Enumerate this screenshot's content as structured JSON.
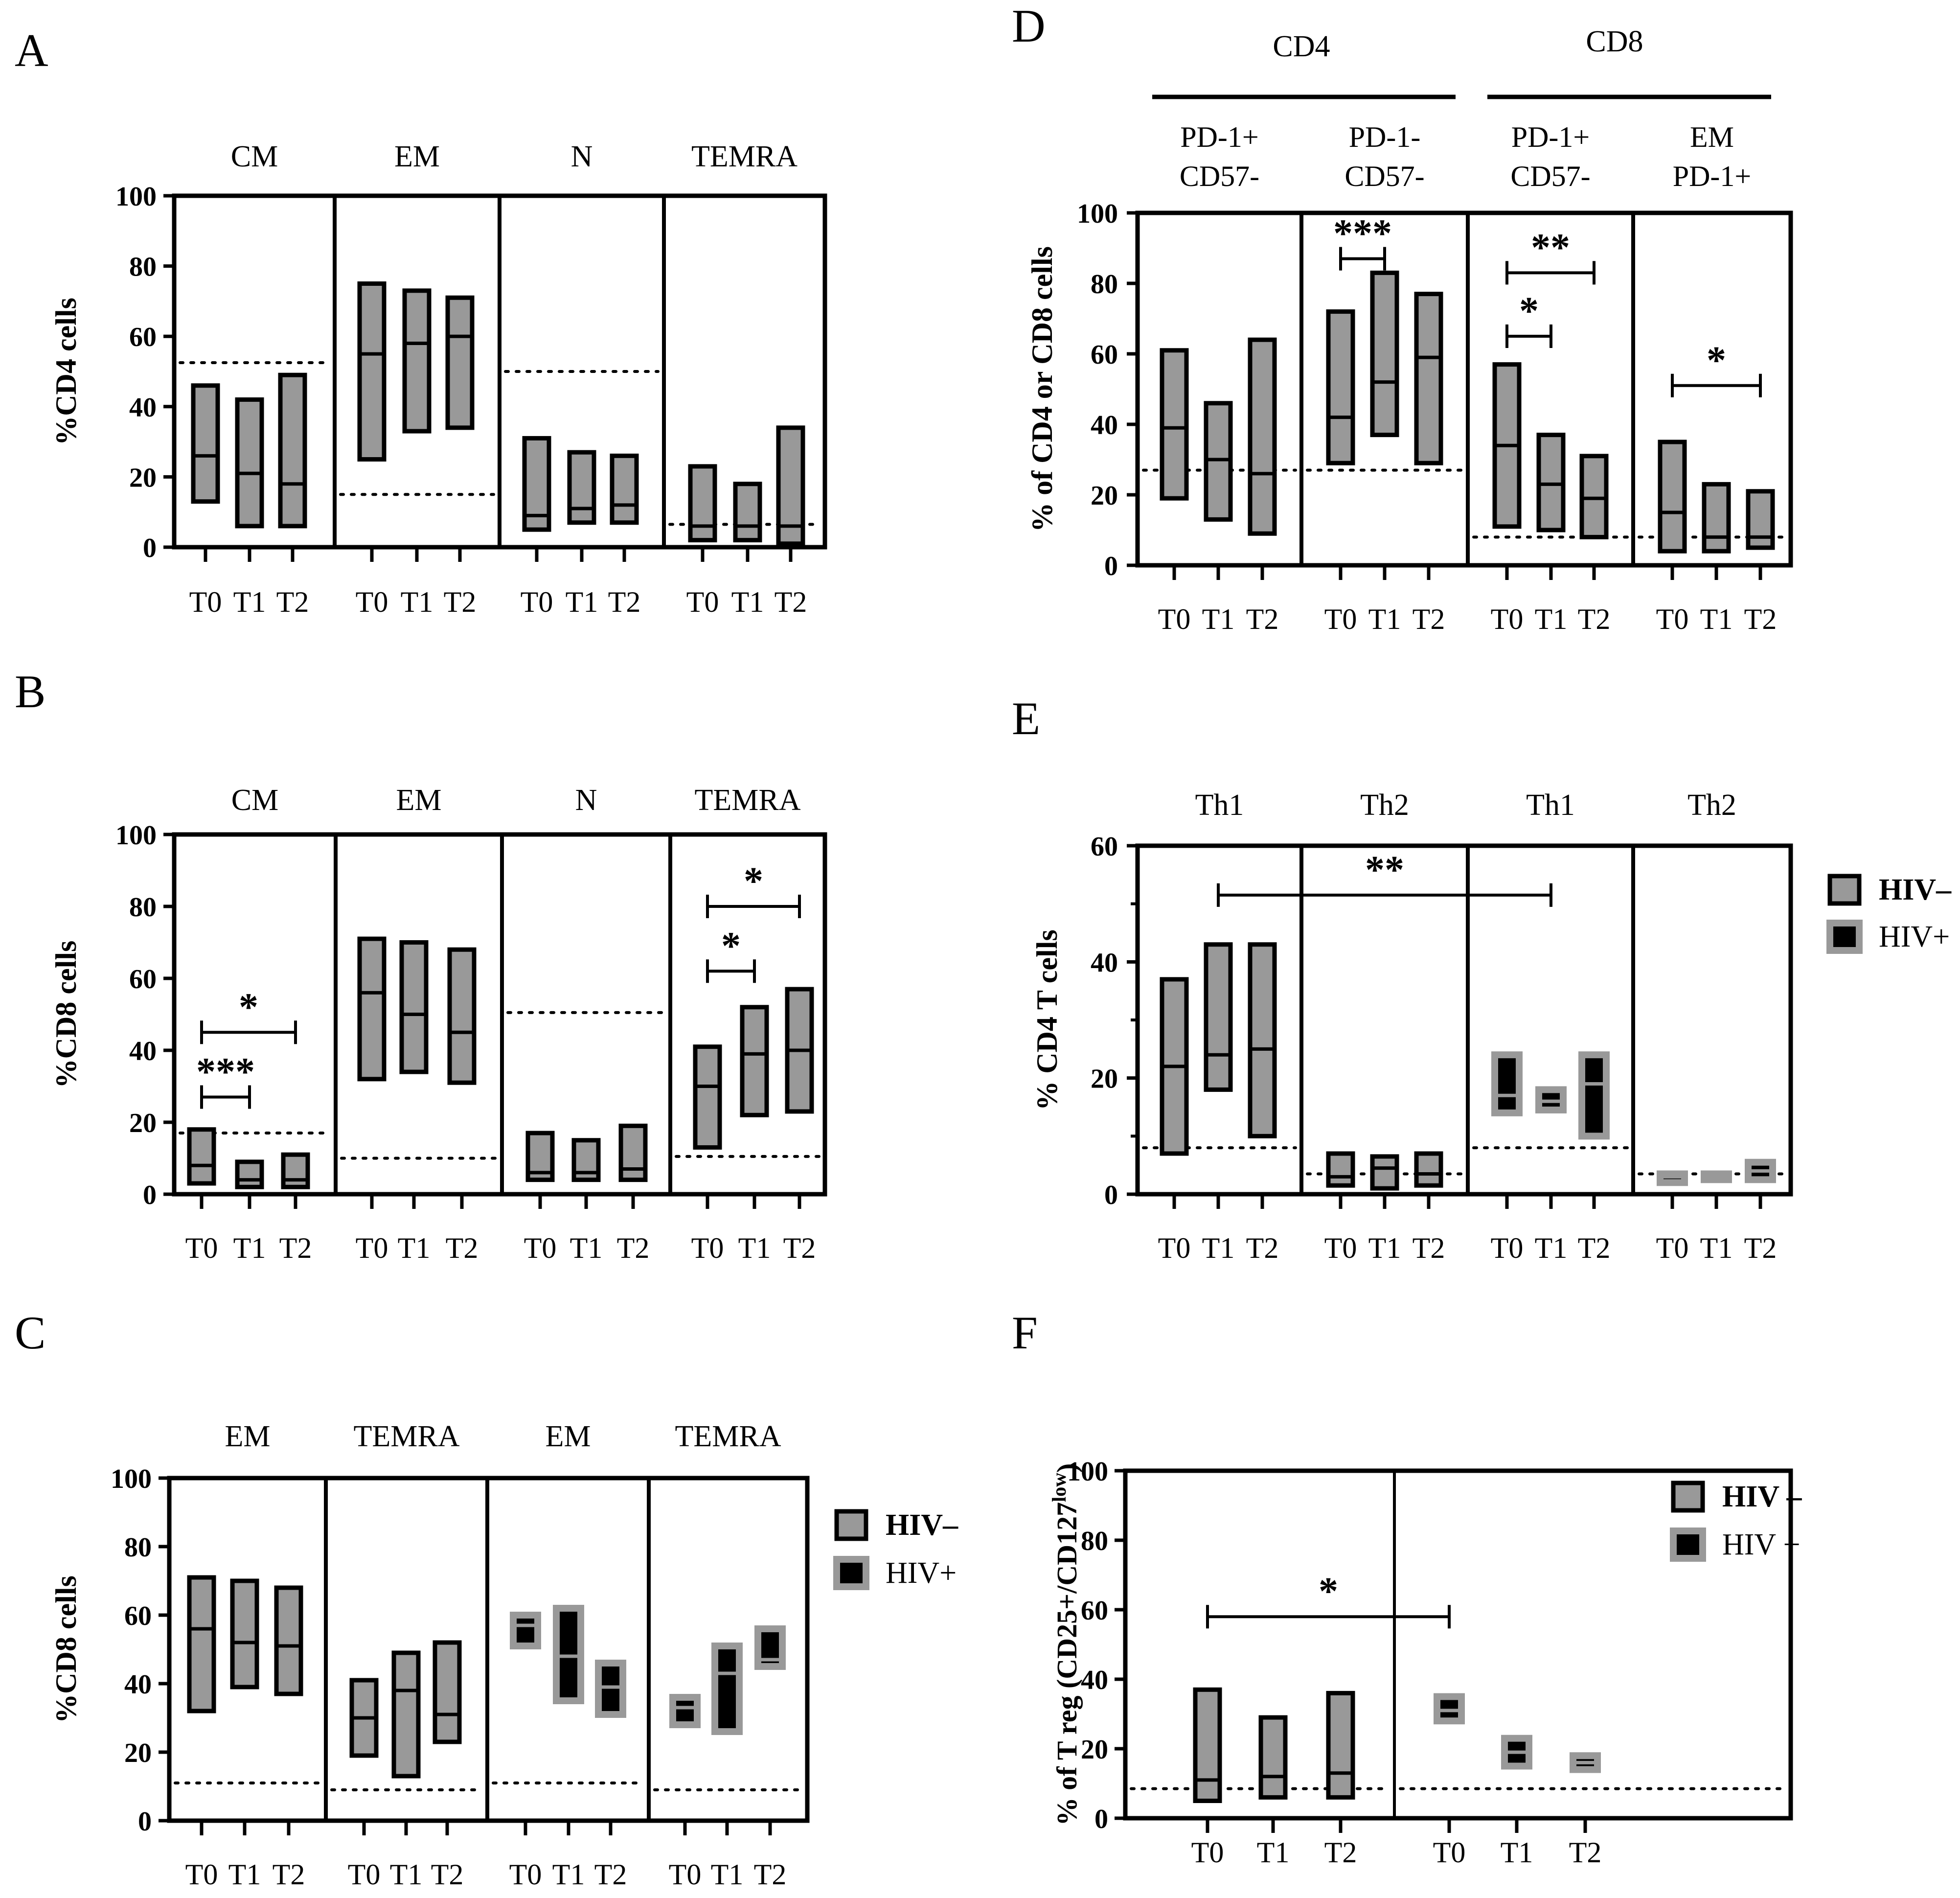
{
  "colors": {
    "hiv_neg": "#999999",
    "hiv_pos": "#000000",
    "hiv_pos_border": "#999999",
    "stroke": "#000000"
  },
  "chart_data": [
    {
      "id": "A",
      "label": "A",
      "type": "floating-bar",
      "ylabel": "%CD4 cells",
      "ylim": [
        0,
        100
      ],
      "yticks": [
        "0",
        "20",
        "40",
        "60",
        "80",
        "100"
      ],
      "timepoints": [
        "T0",
        "T1",
        "T2"
      ],
      "panels": [
        {
          "title": "CM",
          "reference": 52.5,
          "bars": [
            {
              "t": "T0",
              "min": 13,
              "max": 46,
              "median": 26,
              "group": "HIV-"
            },
            {
              "t": "T1",
              "min": 6,
              "max": 42,
              "median": 21,
              "group": "HIV-"
            },
            {
              "t": "T2",
              "min": 6,
              "max": 49,
              "median": 18,
              "group": "HIV-"
            }
          ]
        },
        {
          "title": "EM",
          "reference": 15,
          "bars": [
            {
              "t": "T0",
              "min": 25,
              "max": 75,
              "median": 55,
              "group": "HIV-"
            },
            {
              "t": "T1",
              "min": 33,
              "max": 73,
              "median": 58,
              "group": "HIV-"
            },
            {
              "t": "T2",
              "min": 34,
              "max": 71,
              "median": 60,
              "group": "HIV-"
            }
          ]
        },
        {
          "title": "N",
          "reference": 50,
          "bars": [
            {
              "t": "T0",
              "min": 5,
              "max": 31,
              "median": 9,
              "group": "HIV-"
            },
            {
              "t": "T1",
              "min": 7,
              "max": 27,
              "median": 11,
              "group": "HIV-"
            },
            {
              "t": "T2",
              "min": 7,
              "max": 26,
              "median": 12,
              "group": "HIV-"
            }
          ]
        },
        {
          "title": "TEMRA",
          "reference": 6.5,
          "bars": [
            {
              "t": "T0",
              "min": 2,
              "max": 23,
              "median": 6,
              "group": "HIV-"
            },
            {
              "t": "T1",
              "min": 2,
              "max": 18,
              "median": 6,
              "group": "HIV-"
            },
            {
              "t": "T2",
              "min": 1,
              "max": 34,
              "median": 6,
              "group": "HIV-"
            }
          ]
        }
      ],
      "sig": []
    },
    {
      "id": "B",
      "label": "B",
      "type": "floating-bar",
      "ylabel": "%CD8 cells",
      "ylim": [
        0,
        100
      ],
      "yticks": [
        "0",
        "20",
        "40",
        "60",
        "80",
        "100"
      ],
      "timepoints": [
        "T0",
        "T1",
        "T2"
      ],
      "panels": [
        {
          "title": "CM",
          "reference": 17,
          "bars": [
            {
              "t": "T0",
              "min": 3,
              "max": 18,
              "median": 8,
              "group": "HIV-"
            },
            {
              "t": "T1",
              "min": 2,
              "max": 9,
              "median": 4,
              "group": "HIV-"
            },
            {
              "t": "T2",
              "min": 2,
              "max": 11,
              "median": 4,
              "group": "HIV-"
            }
          ]
        },
        {
          "title": "EM",
          "reference": 10,
          "bars": [
            {
              "t": "T0",
              "min": 32,
              "max": 71,
              "median": 56,
              "group": "HIV-"
            },
            {
              "t": "T1",
              "min": 34,
              "max": 70,
              "median": 50,
              "group": "HIV-"
            },
            {
              "t": "T2",
              "min": 31,
              "max": 68,
              "median": 45,
              "group": "HIV-"
            }
          ]
        },
        {
          "title": "N",
          "reference": 50.5,
          "bars": [
            {
              "t": "T0",
              "min": 4,
              "max": 17,
              "median": 6,
              "group": "HIV-"
            },
            {
              "t": "T1",
              "min": 4,
              "max": 15,
              "median": 6,
              "group": "HIV-"
            },
            {
              "t": "T2",
              "min": 4,
              "max": 19,
              "median": 7,
              "group": "HIV-"
            }
          ]
        },
        {
          "title": "TEMRA",
          "reference": 10.5,
          "bars": [
            {
              "t": "T0",
              "min": 13,
              "max": 41,
              "median": 30,
              "group": "HIV-"
            },
            {
              "t": "T1",
              "min": 22,
              "max": 52,
              "median": 39,
              "group": "HIV-"
            },
            {
              "t": "T2",
              "min": 23,
              "max": 57,
              "median": 40,
              "group": "HIV-"
            }
          ]
        }
      ],
      "sig": [
        {
          "panel_from": 0,
          "bar_from": 0,
          "panel_to": 0,
          "bar_to": 2,
          "y": 45,
          "label": "*"
        },
        {
          "panel_from": 0,
          "bar_from": 0,
          "panel_to": 0,
          "bar_to": 1,
          "y": 27,
          "label": "***"
        },
        {
          "panel_from": 3,
          "bar_from": 0,
          "panel_to": 3,
          "bar_to": 2,
          "y": 80,
          "label": "*"
        },
        {
          "panel_from": 3,
          "bar_from": 0,
          "panel_to": 3,
          "bar_to": 1,
          "y": 62,
          "label": "*"
        }
      ]
    },
    {
      "id": "C",
      "label": "C",
      "type": "floating-bar",
      "ylabel": "%CD8 cells",
      "ylim": [
        0,
        100
      ],
      "yticks": [
        "0",
        "20",
        "40",
        "60",
        "80",
        "100"
      ],
      "timepoints": [
        "T0",
        "T1",
        "T2"
      ],
      "panels": [
        {
          "title": "EM",
          "reference": 11,
          "bars": [
            {
              "t": "T0",
              "min": 32,
              "max": 71,
              "median": 56,
              "group": "HIV-"
            },
            {
              "t": "T1",
              "min": 39,
              "max": 70,
              "median": 52,
              "group": "HIV-"
            },
            {
              "t": "T2",
              "min": 37,
              "max": 68,
              "median": 51,
              "group": "HIV-"
            }
          ]
        },
        {
          "title": "TEMRA",
          "reference": 9,
          "bars": [
            {
              "t": "T0",
              "min": 19,
              "max": 41,
              "median": 30,
              "group": "HIV-"
            },
            {
              "t": "T1",
              "min": 13,
              "max": 49,
              "median": 38,
              "group": "HIV-"
            },
            {
              "t": "T2",
              "min": 23,
              "max": 52,
              "median": 31,
              "group": "HIV-"
            }
          ]
        },
        {
          "title": "EM",
          "reference": 11,
          "bars": [
            {
              "t": "T0",
              "min": 51,
              "max": 60,
              "median": 57,
              "group": "HIV+"
            },
            {
              "t": "T1",
              "min": 35,
              "max": 62,
              "median": 48,
              "group": "HIV+"
            },
            {
              "t": "T2",
              "min": 31,
              "max": 46,
              "median": 39,
              "group": "HIV+"
            }
          ]
        },
        {
          "title": "TEMRA",
          "reference": 9,
          "bars": [
            {
              "t": "T0",
              "min": 28,
              "max": 36,
              "median": 33,
              "group": "HIV+"
            },
            {
              "t": "T1",
              "min": 26,
              "max": 51,
              "median": 43,
              "group": "HIV+"
            },
            {
              "t": "T2",
              "min": 45,
              "max": 56,
              "median": 47,
              "group": "HIV+"
            }
          ]
        }
      ],
      "legend": [
        {
          "label": "HIV–",
          "group": "HIV-"
        },
        {
          "label": "HIV+",
          "group": "HIV+"
        }
      ],
      "sig": []
    },
    {
      "id": "D",
      "label": "D",
      "type": "floating-bar",
      "ylabel": "% of CD4 or CD8 cells",
      "ylim": [
        0,
        100
      ],
      "yticks": [
        "0",
        "20",
        "40",
        "60",
        "80",
        "100"
      ],
      "timepoints": [
        "T0",
        "T1",
        "T2"
      ],
      "group_headers": [
        {
          "label": "CD4",
          "panels": [
            0,
            1
          ]
        },
        {
          "label": "CD8",
          "panels": [
            2,
            3
          ]
        }
      ],
      "panels": [
        {
          "title": [
            "PD-1+",
            "CD57-"
          ],
          "reference": 27,
          "bars": [
            {
              "t": "T0",
              "min": 19,
              "max": 61,
              "median": 39,
              "group": "HIV-"
            },
            {
              "t": "T1",
              "min": 13,
              "max": 46,
              "median": 30,
              "group": "HIV-"
            },
            {
              "t": "T2",
              "min": 9,
              "max": 64,
              "median": 26,
              "group": "HIV-"
            }
          ]
        },
        {
          "title": [
            "PD-1-",
            "CD57-"
          ],
          "reference": 27,
          "bars": [
            {
              "t": "T0",
              "min": 29,
              "max": 72,
              "median": 42,
              "group": "HIV-"
            },
            {
              "t": "T1",
              "min": 37,
              "max": 83,
              "median": 52,
              "group": "HIV-"
            },
            {
              "t": "T2",
              "min": 29,
              "max": 77,
              "median": 59,
              "group": "HIV-"
            }
          ]
        },
        {
          "title": [
            "PD-1+",
            "CD57-"
          ],
          "reference": 8,
          "bars": [
            {
              "t": "T0",
              "min": 11,
              "max": 57,
              "median": 34,
              "group": "HIV-"
            },
            {
              "t": "T1",
              "min": 10,
              "max": 37,
              "median": 23,
              "group": "HIV-"
            },
            {
              "t": "T2",
              "min": 8,
              "max": 31,
              "median": 19,
              "group": "HIV-"
            }
          ]
        },
        {
          "title": [
            "EM",
            "PD-1+"
          ],
          "reference": 8,
          "bars": [
            {
              "t": "T0",
              "min": 4,
              "max": 35,
              "median": 15,
              "group": "HIV-"
            },
            {
              "t": "T1",
              "min": 4,
              "max": 23,
              "median": 8,
              "group": "HIV-"
            },
            {
              "t": "T2",
              "min": 5,
              "max": 21,
              "median": 8,
              "group": "HIV-"
            }
          ]
        }
      ],
      "sig": [
        {
          "panel_from": 1,
          "bar_from": 0,
          "panel_to": 1,
          "bar_to": 1,
          "y": 87,
          "label": "***"
        },
        {
          "panel_from": 2,
          "bar_from": 0,
          "panel_to": 2,
          "bar_to": 2,
          "y": 83,
          "label": "**"
        },
        {
          "panel_from": 2,
          "bar_from": 0,
          "panel_to": 2,
          "bar_to": 1,
          "y": 65,
          "label": "*"
        },
        {
          "panel_from": 3,
          "bar_from": 0,
          "panel_to": 3,
          "bar_to": 2,
          "y": 51,
          "label": "*"
        }
      ]
    },
    {
      "id": "E",
      "label": "E",
      "type": "floating-bar",
      "ylabel": "% CD4 T cells",
      "ylim": [
        0,
        60
      ],
      "yticks": [
        "0",
        "20",
        "40",
        "60"
      ],
      "minor_yticks": [
        10,
        30,
        50
      ],
      "timepoints": [
        "T0",
        "T1",
        "T2"
      ],
      "panels": [
        {
          "title": "Th1",
          "reference": 8,
          "bars": [
            {
              "t": "T0",
              "min": 7,
              "max": 37,
              "median": 22,
              "group": "HIV-"
            },
            {
              "t": "T1",
              "min": 18,
              "max": 43,
              "median": 24,
              "group": "HIV-"
            },
            {
              "t": "T2",
              "min": 10,
              "max": 43,
              "median": 25,
              "group": "HIV-"
            }
          ]
        },
        {
          "title": "Th2",
          "reference": 3.5,
          "bars": [
            {
              "t": "T0",
              "min": 1.5,
              "max": 7,
              "median": 3,
              "group": "HIV-"
            },
            {
              "t": "T1",
              "min": 1,
              "max": 6.5,
              "median": 4.5,
              "group": "HIV-"
            },
            {
              "t": "T2",
              "min": 1.5,
              "max": 7,
              "median": 3.5,
              "group": "HIV-"
            }
          ]
        },
        {
          "title": "Th1",
          "reference": 8,
          "bars": [
            {
              "t": "T0",
              "min": 14,
              "max": 24,
              "median": 17,
              "group": "HIV+"
            },
            {
              "t": "T1",
              "min": 14.5,
              "max": 18,
              "median": 16,
              "group": "HIV+"
            },
            {
              "t": "T2",
              "min": 10,
              "max": 24,
              "median": 19,
              "group": "HIV+"
            }
          ]
        },
        {
          "title": "Th2",
          "reference": 3.5,
          "bars": [
            {
              "t": "T0",
              "min": 2,
              "max": 3.5,
              "median": 3,
              "group": "HIV+"
            },
            {
              "t": "T1",
              "min": 2.5,
              "max": 3.5,
              "median": 3,
              "group": "HIV+"
            },
            {
              "t": "T2",
              "min": 2.5,
              "max": 5.5,
              "median": 4,
              "group": "HIV+"
            }
          ]
        }
      ],
      "legend": [
        {
          "label": "HIV–",
          "group": "HIV-"
        },
        {
          "label": "HIV+",
          "group": "HIV+"
        }
      ],
      "sig": [
        {
          "panel_from": 0,
          "bar_from": 1,
          "panel_to": 2,
          "bar_to": 1,
          "y": 51.5,
          "label": "**"
        }
      ]
    },
    {
      "id": "F",
      "label": "F",
      "type": "floating-bar",
      "ylabel": "% of T reg (CD25+/CD127",
      "ylabel_sup": "low",
      "ylabel_end": ")",
      "ylim": [
        0,
        100
      ],
      "yticks": [
        "0",
        "20",
        "40",
        "60",
        "80",
        "100"
      ],
      "timepoints": [
        "T0",
        "T1",
        "T2"
      ],
      "panels": [
        {
          "title": "",
          "reference": 8.5,
          "bars": [
            {
              "t": "T0",
              "min": 5,
              "max": 37,
              "median": 11,
              "group": "HIV-"
            },
            {
              "t": "T1",
              "min": 6,
              "max": 29,
              "median": 12,
              "group": "HIV-"
            },
            {
              "t": "T2",
              "min": 6,
              "max": 36,
              "median": 13,
              "group": "HIV-"
            }
          ]
        },
        {
          "title": "",
          "reference": 8.5,
          "bars": [
            {
              "t": "T0",
              "min": 28,
              "max": 35,
              "median": 31,
              "group": "HIV+"
            },
            {
              "t": "T1",
              "min": 15,
              "max": 23,
              "median": 19,
              "group": "HIV+"
            },
            {
              "t": "T2",
              "min": 14,
              "max": 18,
              "median": 16,
              "group": "HIV+"
            }
          ]
        }
      ],
      "legend": [
        {
          "label": "HIV –",
          "group": "HIV-"
        },
        {
          "label": "HIV +",
          "group": "HIV+"
        }
      ],
      "sig": [
        {
          "panel_from": 0,
          "bar_from": 0,
          "panel_to": 1,
          "bar_to": 0,
          "y": 58,
          "label": "*"
        }
      ]
    }
  ]
}
